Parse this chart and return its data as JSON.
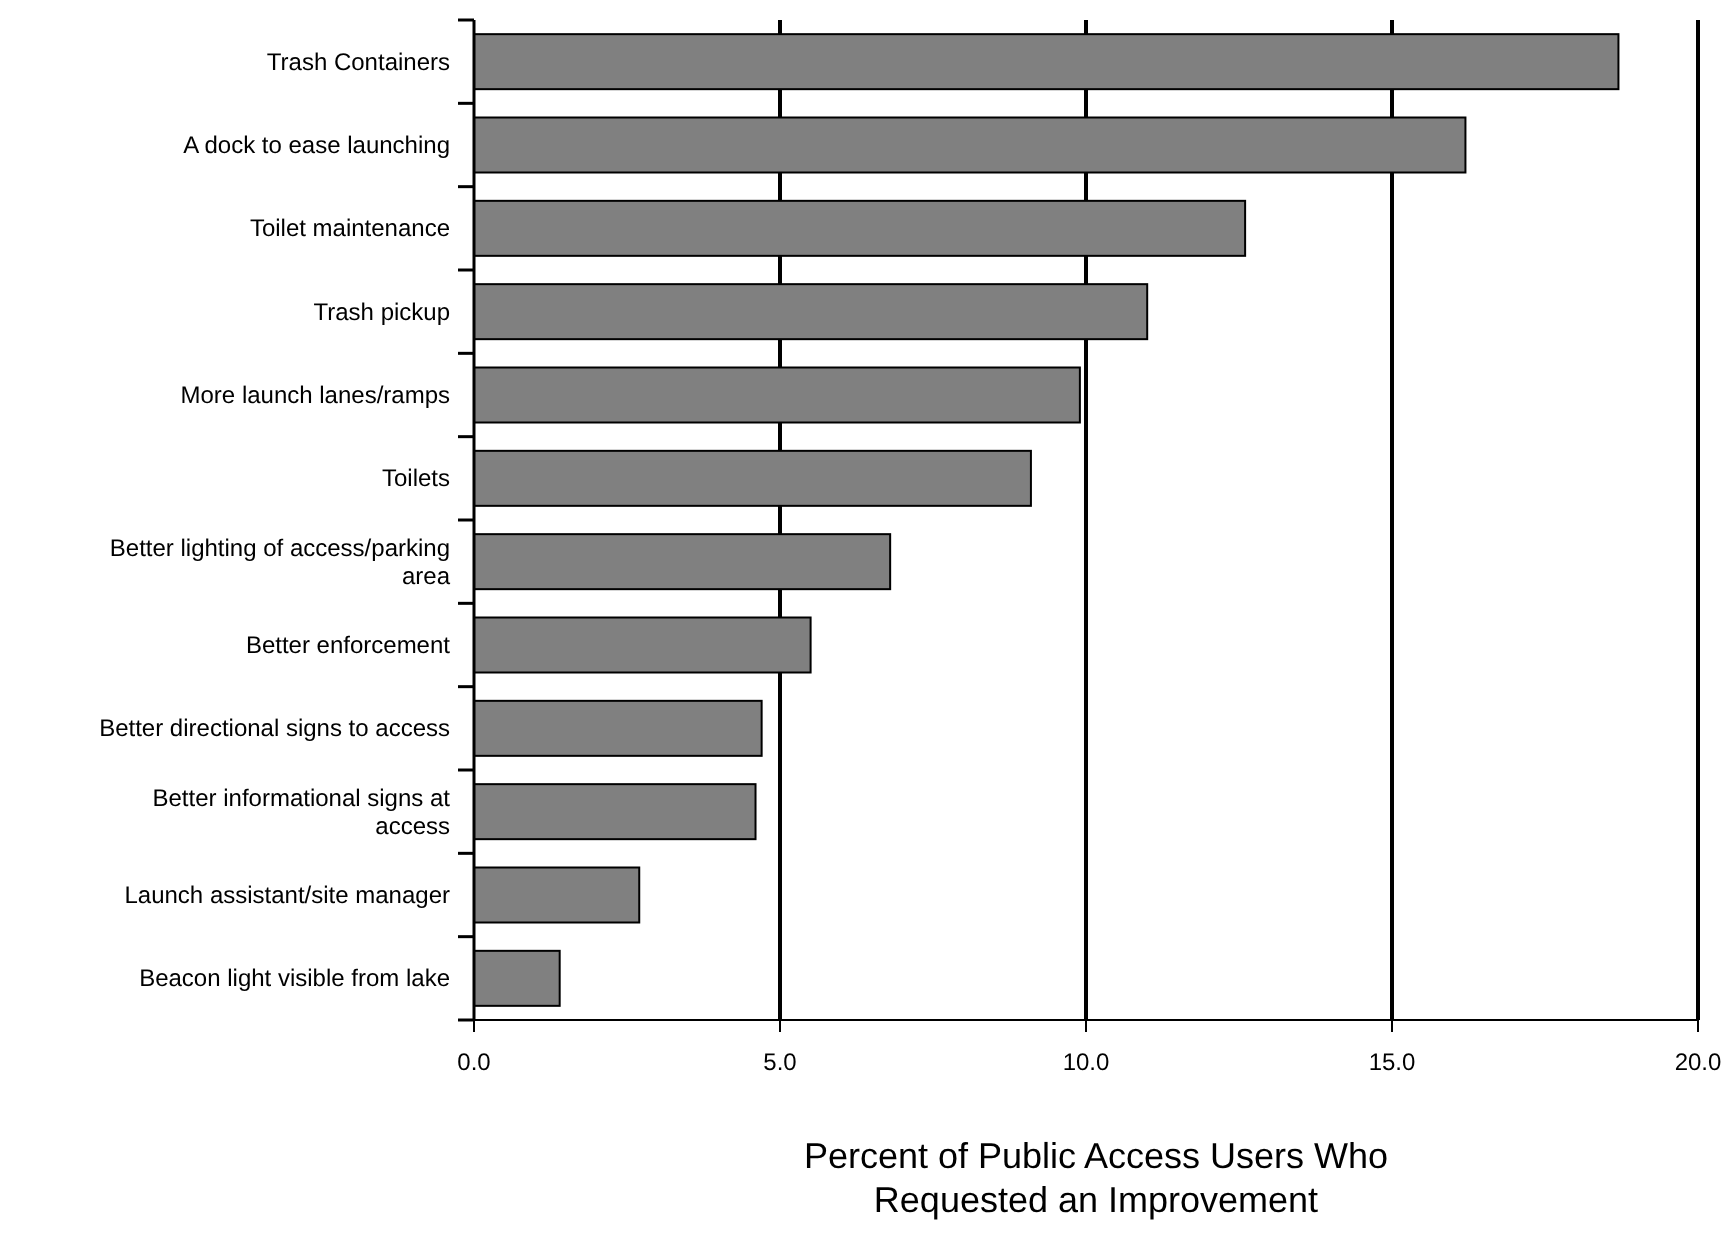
{
  "chart_data": {
    "type": "bar",
    "orientation": "horizontal",
    "categories": [
      "Trash Containers",
      "A dock to ease launching",
      "Toilet maintenance",
      "Trash pickup",
      "More launch lanes/ramps",
      "Toilets",
      "Better lighting of access/parking area",
      "Better enforcement",
      "Better directional signs to access",
      "Better informational signs at access",
      "Launch assistant/site manager",
      "Beacon light visible from lake"
    ],
    "values": [
      18.7,
      16.2,
      12.6,
      11.0,
      9.9,
      9.1,
      6.8,
      5.5,
      4.7,
      4.6,
      2.7,
      1.4
    ],
    "color": "#808080",
    "xlabel": "Percent of Public Access Users Who Requested an Improvement",
    "xlim": [
      0,
      20
    ],
    "xticks": [
      {
        "value": 0,
        "label": "0.0"
      },
      {
        "value": 5,
        "label": "5.0"
      },
      {
        "value": 10,
        "label": "10.0"
      },
      {
        "value": 15,
        "label": "15.0"
      },
      {
        "value": 20,
        "label": "20.0"
      }
    ],
    "grid": "x"
  }
}
